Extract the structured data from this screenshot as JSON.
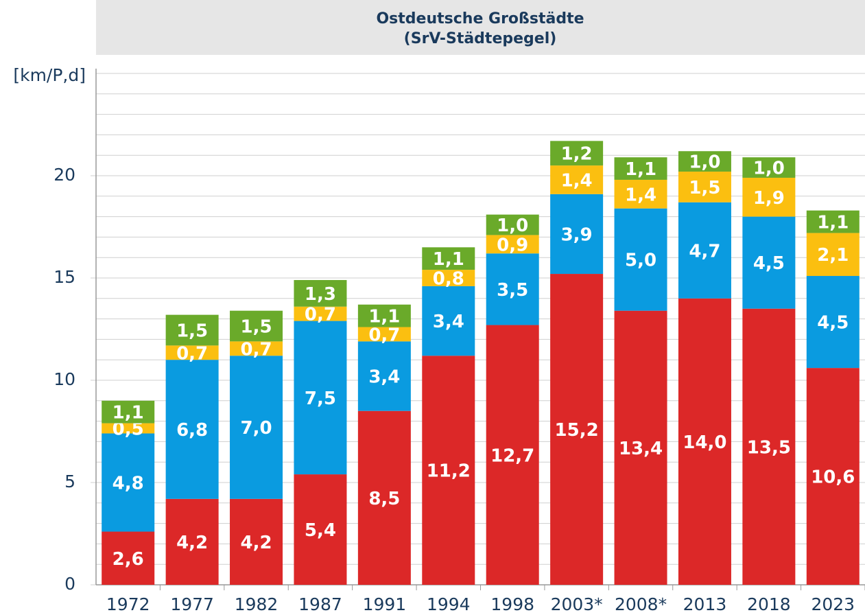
{
  "chart_data": {
    "type": "stacked_bar",
    "title": "Ostdeutsche Großstädte",
    "subtitle": "(SrV-Städtepegel)",
    "y_label": "[km/P,d]",
    "categories": [
      "1972",
      "1977",
      "1982",
      "1987",
      "1991",
      "1994",
      "1998",
      "2003*",
      "2008*",
      "2013",
      "2018",
      "2023"
    ],
    "series": [
      {
        "color": "#dc2828",
        "values": [
          2.6,
          4.2,
          4.2,
          5.4,
          8.5,
          11.2,
          12.7,
          15.2,
          13.4,
          14.0,
          13.5,
          10.6
        ],
        "value_labels": [
          "2,6",
          "4,2",
          "4,2",
          "5,4",
          "8,5",
          "11,2",
          "12,7",
          "15,2",
          "13,4",
          "14,0",
          "13,5",
          "10,6"
        ]
      },
      {
        "color": "#0a9be0",
        "values": [
          4.8,
          6.8,
          7.0,
          7.5,
          3.4,
          3.4,
          3.5,
          3.9,
          5.0,
          4.7,
          4.5,
          4.5
        ],
        "value_labels": [
          "4,8",
          "6,8",
          "7,0",
          "7,5",
          "3,4",
          "3,4",
          "3,5",
          "3,9",
          "5,0",
          "4,7",
          "4,5",
          "4,5"
        ]
      },
      {
        "color": "#fbbf10",
        "values": [
          0.5,
          0.7,
          0.7,
          0.7,
          0.7,
          0.8,
          0.9,
          1.4,
          1.4,
          1.5,
          1.9,
          2.1
        ],
        "value_labels": [
          "0,5",
          "0,7",
          "0,7",
          "0,7",
          "0,7",
          "0,8",
          "0,9",
          "1,4",
          "1,4",
          "1,5",
          "1,9",
          "2,1"
        ]
      },
      {
        "color": "#6aaa2a",
        "values": [
          1.1,
          1.5,
          1.5,
          1.3,
          1.1,
          1.1,
          1.0,
          1.2,
          1.1,
          1.0,
          1.0,
          1.1
        ],
        "value_labels": [
          "1,1",
          "1,5",
          "1,5",
          "1,3",
          "1,1",
          "1,1",
          "1,0",
          "1,2",
          "1,1",
          "1,0",
          "1,0",
          "1,1"
        ]
      }
    ],
    "ylim": [
      0,
      25
    ],
    "yticks": [
      0,
      5,
      10,
      15,
      20
    ],
    "minor_yticks": [
      1,
      2,
      3,
      4,
      6,
      7,
      8,
      9,
      11,
      12,
      13,
      14,
      16,
      17,
      18,
      19,
      21,
      22,
      23,
      24,
      25
    ],
    "grid": true
  }
}
